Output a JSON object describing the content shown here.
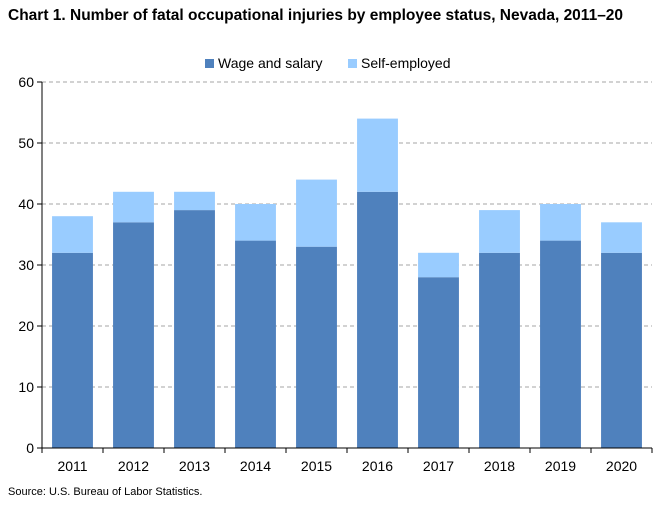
{
  "chart_data": {
    "type": "bar",
    "stacked": true,
    "title": "Chart 1. Number of fatal occupational injuries by employee status, Nevada, 2011–20",
    "xlabel": "",
    "ylabel": "",
    "categories": [
      "2011",
      "2012",
      "2013",
      "2014",
      "2015",
      "2016",
      "2017",
      "2018",
      "2019",
      "2020"
    ],
    "series": [
      {
        "name": "Wage and salary",
        "color": "#4f81bd",
        "values": [
          32,
          37,
          39,
          34,
          33,
          42,
          28,
          32,
          34,
          32
        ]
      },
      {
        "name": "Self-employed",
        "color": "#99ccff",
        "values": [
          6,
          5,
          3,
          6,
          11,
          12,
          4,
          7,
          6,
          5
        ]
      }
    ],
    "ylim": [
      0,
      60
    ],
    "yticks": [
      0,
      10,
      20,
      30,
      40,
      50,
      60
    ],
    "grid": true,
    "legend_position": "top-center"
  },
  "source": "Source: U.S. Bureau of Labor Statistics."
}
